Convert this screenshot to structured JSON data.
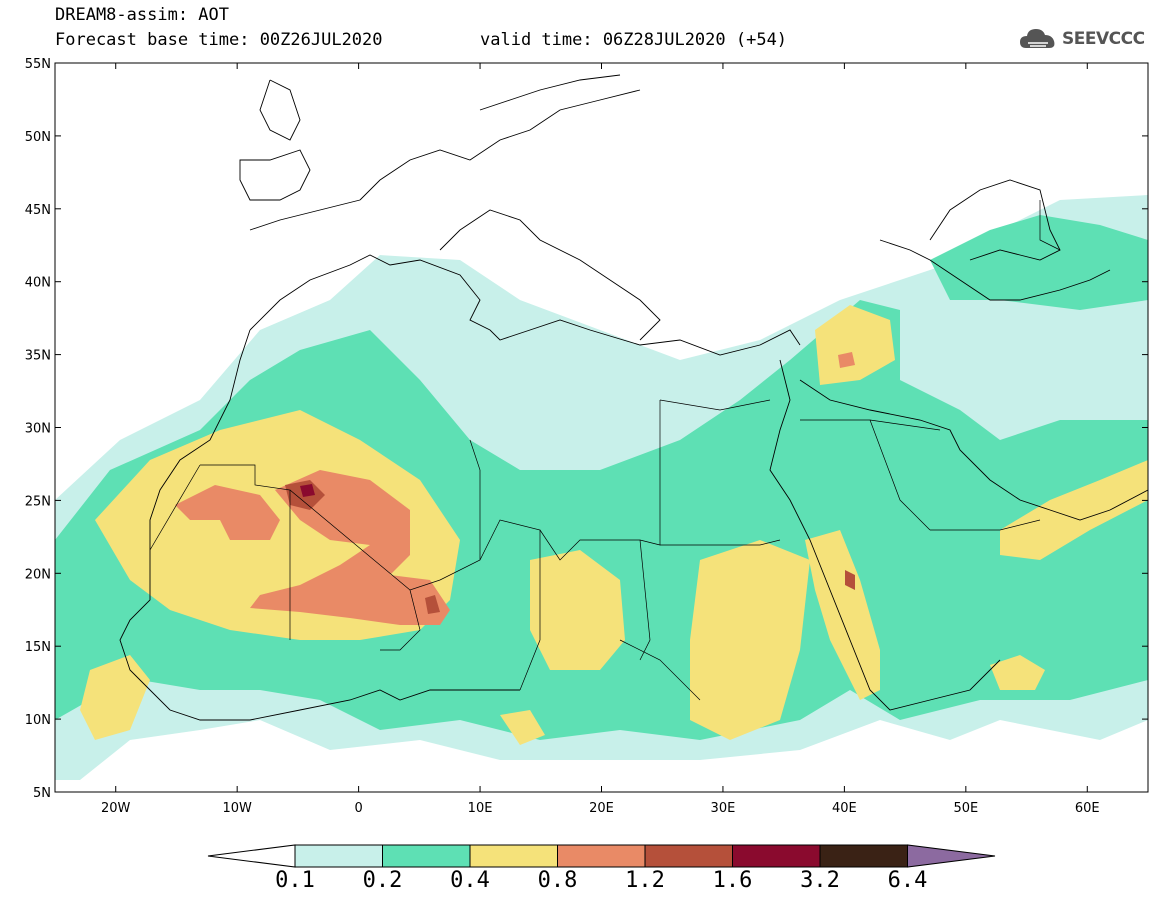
{
  "header": {
    "title": "DREAM8-assim: AOT",
    "base_time": "Forecast base time: 00Z26JUL2020",
    "valid_time": "valid time: 06Z28JUL2020 (+54)",
    "logo_text": "SEEVCCC",
    "logo_icon": "cloud-icon"
  },
  "map": {
    "lon_range": [
      -25,
      65
    ],
    "lat_range": [
      5,
      55
    ],
    "x_ticks": [
      "20W",
      "10W",
      "0",
      "10E",
      "20E",
      "30E",
      "40E",
      "50E",
      "60E"
    ],
    "y_ticks": [
      "55N",
      "50N",
      "45N",
      "40N",
      "35N",
      "30N",
      "25N",
      "20N",
      "15N",
      "10N",
      "5N"
    ]
  },
  "colorbar": {
    "labels": [
      "0.1",
      "0.2",
      "0.4",
      "0.8",
      "1.2",
      "1.6",
      "3.2",
      "6.4"
    ],
    "colors": [
      "#ffffff",
      "#c8f0ea",
      "#5ee0b4",
      "#f5e27a",
      "#e98a66",
      "#b5503a",
      "#8a0a2e",
      "#3a2215",
      "#8c6aa0"
    ]
  },
  "colors": {
    "class_0_2_0_4": "#5ee0b4",
    "class_0_1_0_2": "#c8f0ea",
    "class_0_4_0_8": "#f5e27a",
    "class_0_8_1_2": "#e98a66",
    "class_1_2_1_6": "#b5503a",
    "class_1_6_3_2": "#8a0a2e"
  }
}
